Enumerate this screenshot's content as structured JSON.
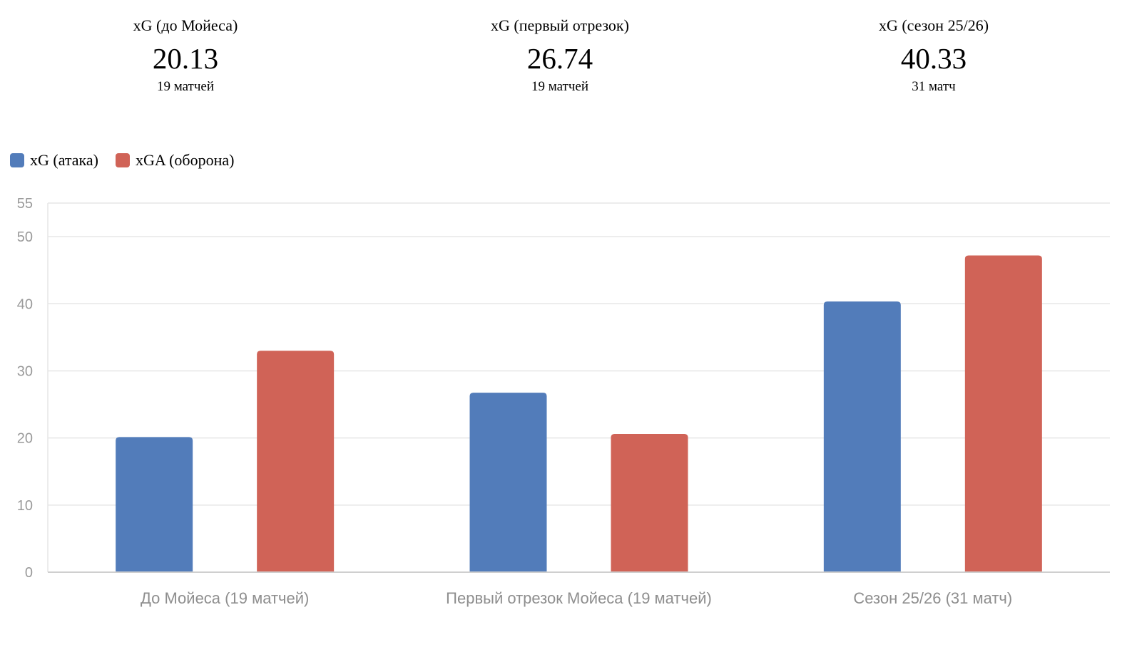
{
  "stats": [
    {
      "label": "xG (до Мойеса)",
      "value": "20.13",
      "sub": "19 матчей"
    },
    {
      "label": "xG (первый отрезок)",
      "value": "26.74",
      "sub": "19 матчей"
    },
    {
      "label": "xG (сезон 25/26)",
      "value": "40.33",
      "sub": "31 матч"
    }
  ],
  "legend": [
    {
      "label": "xG (атака)",
      "color": "#527cba"
    },
    {
      "label": "xGA (оборона)",
      "color": "#d06357"
    }
  ],
  "chart_data": {
    "type": "bar",
    "categories": [
      "До Мойеса (19 матчей)",
      "Первый отрезок Мойеса (19 матчей)",
      "Сезон 25/26 (31 матч)"
    ],
    "series": [
      {
        "name": "xG (атака)",
        "values": [
          20.13,
          26.74,
          40.33
        ],
        "color": "#527cba"
      },
      {
        "name": "xGA (оборона)",
        "values": [
          33.0,
          20.6,
          47.2
        ],
        "color": "#d06357"
      }
    ],
    "yticks": [
      "0",
      "10",
      "20",
      "30",
      "40",
      "50",
      "55"
    ],
    "ylim": [
      0,
      55
    ],
    "grid": true,
    "legend_position": "top-left"
  }
}
